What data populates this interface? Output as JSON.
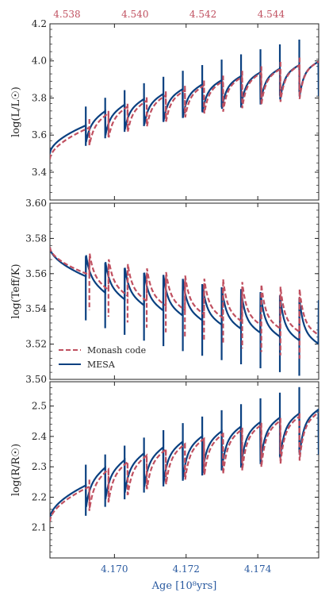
{
  "colors": {
    "monash": "#c05060",
    "mesa": "#0a4080"
  },
  "top_axis": {
    "ticks": [
      "4.538",
      "4.540",
      "4.542",
      "4.544"
    ],
    "tick_values": [
      4.538,
      4.54,
      4.542,
      4.544
    ],
    "range": [
      4.5375,
      4.5454
    ]
  },
  "bottom_axis": {
    "ticks": [
      "4.170",
      "4.172",
      "4.174"
    ],
    "tick_values": [
      4.17,
      4.172,
      4.174
    ],
    "range": [
      4.1682,
      4.1757
    ],
    "label": "Age [10⁸yrs]"
  },
  "legend": {
    "items": [
      {
        "label": "Monash code",
        "style": "dashed"
      },
      {
        "label": "MESA",
        "style": "solid"
      }
    ]
  },
  "chart_data": [
    {
      "type": "line",
      "ylabel": "log(L/L☉)",
      "ylim": [
        3.25,
        4.2
      ],
      "yticks": [
        "3.4",
        "3.6",
        "3.8",
        "4.0",
        "4.2"
      ],
      "ytick_values": [
        3.4,
        3.6,
        3.8,
        4.0,
        4.2
      ],
      "series": [
        {
          "name": "MESA",
          "base_start": 3.5,
          "base_end": 3.96,
          "dip": 0.15,
          "spike_hi": 0.18,
          "spike_lo": 0.11,
          "offset_start": 4.1692
        },
        {
          "name": "Monash code",
          "base_start": 3.47,
          "base_end": 3.96,
          "dip": 0.15,
          "spike_hi": 0.08,
          "spike_lo": 0.1,
          "offset_start": 4.1693
        }
      ]
    },
    {
      "type": "line",
      "ylabel": "log(Teff/K)",
      "ylim": [
        3.5,
        3.6
      ],
      "yticks": [
        "3.50",
        "3.52",
        "3.54",
        "3.56",
        "3.58",
        "3.60"
      ],
      "ytick_values": [
        3.5,
        3.52,
        3.54,
        3.56,
        3.58,
        3.6
      ],
      "series": [
        {
          "name": "MESA",
          "base_start": 3.575,
          "base_end": 3.525,
          "dip": -0.02,
          "spike_hi": 0.02,
          "spike_lo": 0.025,
          "offset_start": 4.1692
        },
        {
          "name": "Monash code",
          "base_start": 3.575,
          "base_end": 3.53,
          "dip": -0.02,
          "spike_hi": 0.015,
          "spike_lo": 0.02,
          "offset_start": 4.1693
        }
      ]
    },
    {
      "type": "line",
      "ylabel": "log(R/R☉)",
      "ylim": [
        2.0,
        2.58
      ],
      "yticks": [
        "2.1",
        "2.2",
        "2.3",
        "2.4",
        "2.5"
      ],
      "ytick_values": [
        2.1,
        2.2,
        2.3,
        2.4,
        2.5
      ],
      "series": [
        {
          "name": "MESA",
          "base_start": 2.13,
          "base_end": 2.46,
          "dip": 0.12,
          "spike_hi": 0.12,
          "spike_lo": 0.1,
          "offset_start": 4.1692
        },
        {
          "name": "Monash code",
          "base_start": 2.12,
          "base_end": 2.45,
          "dip": 0.12,
          "spike_hi": 0.04,
          "spike_lo": 0.08,
          "offset_start": 4.1693
        }
      ]
    }
  ]
}
